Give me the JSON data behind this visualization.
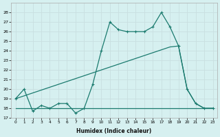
{
  "xlabel": "Humidex (Indice chaleur)",
  "bg_color": "#d6f0f0",
  "grid_color": "#c8dfe0",
  "line_color": "#1a7a6e",
  "xlim": [
    -0.5,
    23.5
  ],
  "ylim": [
    17,
    29
  ],
  "yticks": [
    17,
    18,
    19,
    20,
    21,
    22,
    23,
    24,
    25,
    26,
    27,
    28
  ],
  "xticks": [
    0,
    1,
    2,
    3,
    4,
    5,
    6,
    7,
    8,
    9,
    10,
    11,
    12,
    13,
    14,
    15,
    16,
    17,
    18,
    19,
    20,
    21,
    22,
    23
  ],
  "series1_x": [
    0,
    1,
    2,
    3,
    4,
    5,
    6,
    7,
    8,
    9,
    10,
    11,
    12,
    13,
    14,
    15,
    16,
    17,
    18,
    19,
    20,
    21,
    22,
    23
  ],
  "series1_y": [
    19,
    20,
    17.7,
    18.3,
    18,
    18.5,
    18.5,
    17.5,
    18,
    20.5,
    24,
    27,
    26.2,
    26,
    26,
    26,
    26.5,
    28,
    26.5,
    24.5,
    20,
    18.5,
    18,
    18
  ],
  "series2_x": [
    0,
    10,
    23
  ],
  "series2_y": [
    18,
    18,
    18
  ],
  "series3_x": [
    0,
    1,
    2,
    3,
    4,
    5,
    6,
    7,
    8,
    9,
    10,
    11,
    12,
    13,
    14,
    15,
    16,
    17,
    18,
    19,
    20,
    21,
    22,
    23
  ],
  "series3_y": [
    19,
    19.3,
    19.6,
    19.9,
    20.2,
    20.5,
    20.8,
    21.1,
    21.4,
    21.7,
    22.0,
    22.3,
    22.6,
    22.9,
    23.2,
    23.5,
    23.8,
    24.1,
    24.4,
    24.5,
    20,
    18.5,
    18,
    18
  ]
}
